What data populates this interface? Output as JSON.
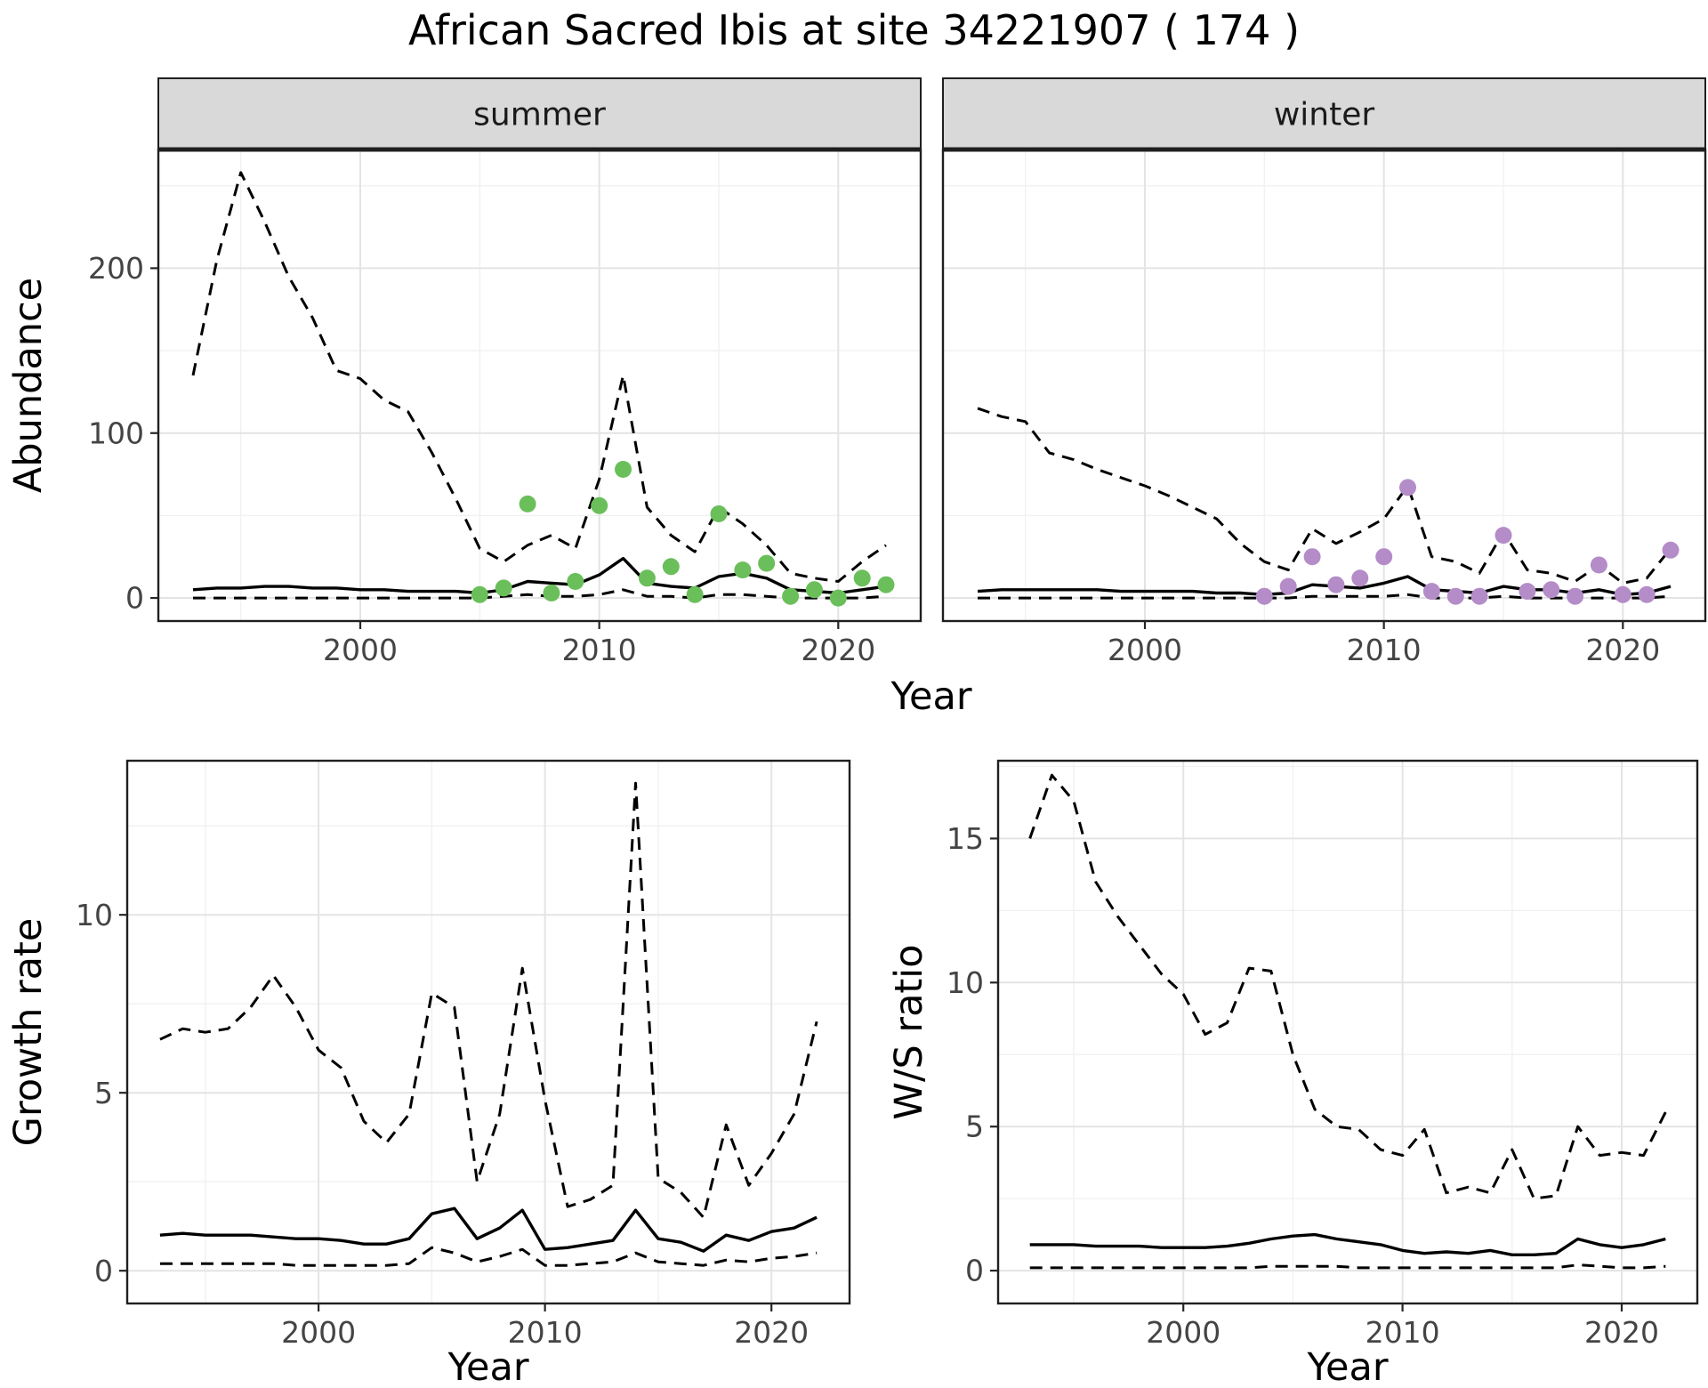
{
  "title": "African Sacred Ibis at site 34221907 ( 174 )",
  "facets": [
    "summer",
    "winter"
  ],
  "colors": {
    "summer_points": "#6abf5a",
    "winter_points": "#b48cc8",
    "line": "#000000",
    "strip_bg": "#d9d9d9",
    "panel_border": "#1f1f1f",
    "grid_major": "#e4e4e4",
    "grid_minor": "#f1f1f1",
    "tick": "#262626",
    "tick_text": "#444444",
    "text": "#000000",
    "background": "#ffffff"
  },
  "chart_data": [
    {
      "id": "abundance-summer",
      "type": "line",
      "facet": "summer",
      "title": "",
      "xlabel": "Year",
      "ylabel": "Abundance",
      "xlim": [
        1991.55,
        2023.45
      ],
      "ylim": [
        -14,
        272
      ],
      "xticks": [
        2000,
        2010,
        2020
      ],
      "yticks": [
        0,
        100,
        200
      ],
      "xticks_minor": [
        1995,
        2005,
        2015
      ],
      "yticks_minor": [
        50,
        150,
        250
      ],
      "grid": true,
      "legend": "none",
      "x": [
        1993,
        1994,
        1995,
        1996,
        1997,
        1998,
        1999,
        2000,
        2001,
        2002,
        2003,
        2004,
        2005,
        2006,
        2007,
        2008,
        2009,
        2010,
        2011,
        2012,
        2013,
        2014,
        2015,
        2016,
        2017,
        2018,
        2019,
        2020,
        2021,
        2022
      ],
      "series": [
        {
          "name": "upper-ci",
          "style": "dashed",
          "color": "#000000",
          "values": [
            135,
            205,
            258,
            228,
            195,
            170,
            138,
            133,
            120,
            113,
            88,
            60,
            30,
            22,
            32,
            38,
            30,
            72,
            135,
            55,
            38,
            28,
            55,
            45,
            32,
            15,
            12,
            10,
            22,
            32
          ]
        },
        {
          "name": "median",
          "style": "solid",
          "color": "#000000",
          "values": [
            5,
            6,
            6,
            7,
            7,
            6,
            6,
            5,
            5,
            4,
            4,
            4,
            3,
            5,
            10,
            9,
            8,
            14,
            24,
            9,
            7,
            6,
            13,
            15,
            12,
            5,
            4,
            3,
            5,
            7
          ]
        },
        {
          "name": "lower-ci",
          "style": "dashed",
          "color": "#000000",
          "values": [
            0,
            0,
            0,
            0,
            0,
            0,
            0,
            0,
            0,
            0,
            0,
            0,
            0,
            1,
            2,
            1,
            1,
            2,
            5,
            1,
            1,
            0,
            2,
            2,
            1,
            0,
            0,
            0,
            0,
            1
          ]
        },
        {
          "name": "observed-counts",
          "style": "points",
          "color": "#6abf5a",
          "x": [
            2005,
            2006,
            2007,
            2008,
            2009,
            2010,
            2011,
            2012,
            2013,
            2014,
            2015,
            2016,
            2017,
            2018,
            2019,
            2020,
            2021,
            2022
          ],
          "values": [
            2,
            6,
            57,
            3,
            10,
            56,
            78,
            12,
            19,
            2,
            51,
            17,
            21,
            1,
            5,
            0,
            12,
            8
          ]
        }
      ]
    },
    {
      "id": "abundance-winter",
      "type": "line",
      "facet": "winter",
      "title": "",
      "xlabel": "Year",
      "ylabel": "Abundance",
      "xlim": [
        1991.55,
        2023.45
      ],
      "ylim": [
        -14,
        272
      ],
      "xticks": [
        2000,
        2010,
        2020
      ],
      "yticks": [
        0,
        100,
        200
      ],
      "xticks_minor": [
        1995,
        2005,
        2015
      ],
      "yticks_minor": [
        50,
        150,
        250
      ],
      "grid": true,
      "legend": "none",
      "x": [
        1993,
        1994,
        1995,
        1996,
        1997,
        1998,
        1999,
        2000,
        2001,
        2002,
        2003,
        2004,
        2005,
        2006,
        2007,
        2008,
        2009,
        2010,
        2011,
        2012,
        2013,
        2014,
        2015,
        2016,
        2017,
        2018,
        2019,
        2020,
        2021,
        2022
      ],
      "series": [
        {
          "name": "upper-ci",
          "style": "dashed",
          "color": "#000000",
          "values": [
            115,
            110,
            107,
            88,
            84,
            78,
            73,
            68,
            62,
            55,
            48,
            33,
            22,
            17,
            42,
            33,
            40,
            48,
            68,
            25,
            22,
            15,
            40,
            17,
            15,
            10,
            20,
            9,
            12,
            30
          ]
        },
        {
          "name": "median",
          "style": "solid",
          "color": "#000000",
          "values": [
            4,
            5,
            5,
            5,
            5,
            5,
            4,
            4,
            4,
            4,
            3,
            3,
            2,
            3,
            8,
            7,
            6,
            9,
            13,
            5,
            4,
            3,
            7,
            5,
            5,
            3,
            5,
            2,
            3,
            7
          ]
        },
        {
          "name": "lower-ci",
          "style": "dashed",
          "color": "#000000",
          "values": [
            0,
            0,
            0,
            0,
            0,
            0,
            0,
            0,
            0,
            0,
            0,
            0,
            0,
            0,
            1,
            1,
            1,
            1,
            2,
            0,
            0,
            0,
            1,
            0,
            0,
            0,
            0,
            0,
            0,
            1
          ]
        },
        {
          "name": "observed-counts",
          "style": "points",
          "color": "#b48cc8",
          "x": [
            2005,
            2006,
            2007,
            2008,
            2009,
            2010,
            2011,
            2012,
            2013,
            2014,
            2015,
            2016,
            2017,
            2018,
            2019,
            2020,
            2021,
            2022
          ],
          "values": [
            1,
            7,
            25,
            8,
            12,
            25,
            67,
            4,
            1,
            1,
            38,
            4,
            5,
            1,
            20,
            2,
            2,
            29
          ]
        }
      ]
    },
    {
      "id": "growth-rate",
      "type": "line",
      "facet": "",
      "title": "",
      "xlabel": "Year",
      "ylabel": "Growth rate",
      "xlim": [
        1991.55,
        2023.45
      ],
      "ylim": [
        -0.92,
        14.33
      ],
      "xticks": [
        2000,
        2010,
        2020
      ],
      "yticks": [
        0,
        5,
        10
      ],
      "xticks_minor": [
        1995,
        2005,
        2015
      ],
      "yticks_minor": [
        2.5,
        7.5,
        12.5
      ],
      "grid": true,
      "legend": "none",
      "x": [
        1993,
        1994,
        1995,
        1996,
        1997,
        1998,
        1999,
        2000,
        2001,
        2002,
        2003,
        2004,
        2005,
        2006,
        2007,
        2008,
        2009,
        2010,
        2011,
        2012,
        2013,
        2014,
        2015,
        2016,
        2017,
        2018,
        2019,
        2020,
        2021,
        2022
      ],
      "series": [
        {
          "name": "upper-ci",
          "style": "dashed",
          "color": "#000000",
          "values": [
            6.5,
            6.8,
            6.7,
            6.8,
            7.4,
            8.3,
            7.4,
            6.2,
            5.7,
            4.2,
            3.6,
            4.4,
            7.8,
            7.4,
            2.5,
            4.4,
            8.5,
            4.8,
            1.8,
            2.0,
            2.4,
            13.7,
            2.6,
            2.2,
            1.5,
            4.1,
            2.4,
            3.3,
            4.4,
            7.0
          ]
        },
        {
          "name": "median",
          "style": "solid",
          "color": "#000000",
          "values": [
            1.0,
            1.05,
            1.0,
            1.0,
            1.0,
            0.95,
            0.9,
            0.9,
            0.85,
            0.75,
            0.75,
            0.9,
            1.6,
            1.75,
            0.9,
            1.2,
            1.7,
            0.6,
            0.65,
            0.75,
            0.85,
            1.7,
            0.9,
            0.8,
            0.55,
            1.0,
            0.85,
            1.1,
            1.2,
            1.5
          ]
        },
        {
          "name": "lower-ci",
          "style": "dashed",
          "color": "#000000",
          "values": [
            0.2,
            0.2,
            0.2,
            0.2,
            0.2,
            0.2,
            0.15,
            0.15,
            0.15,
            0.15,
            0.15,
            0.2,
            0.65,
            0.5,
            0.25,
            0.4,
            0.6,
            0.15,
            0.15,
            0.2,
            0.25,
            0.5,
            0.25,
            0.2,
            0.15,
            0.3,
            0.25,
            0.35,
            0.4,
            0.5
          ]
        }
      ]
    },
    {
      "id": "ws-ratio",
      "type": "line",
      "facet": "",
      "title": "",
      "xlabel": "Year",
      "ylabel": "W/S ratio",
      "xlim": [
        1991.55,
        2023.45
      ],
      "ylim": [
        -1.14,
        17.7
      ],
      "xticks": [
        2000,
        2010,
        2020
      ],
      "yticks": [
        0,
        5,
        10,
        15
      ],
      "xticks_minor": [
        1995,
        2005,
        2015
      ],
      "yticks_minor": [
        2.5,
        7.5,
        12.5,
        17.5
      ],
      "grid": true,
      "legend": "none",
      "x": [
        1993,
        1994,
        1995,
        1996,
        1997,
        1998,
        1999,
        2000,
        2001,
        2002,
        2003,
        2004,
        2005,
        2006,
        2007,
        2008,
        2009,
        2010,
        2011,
        2012,
        2013,
        2014,
        2015,
        2016,
        2017,
        2018,
        2019,
        2020,
        2021,
        2022
      ],
      "series": [
        {
          "name": "upper-ci",
          "style": "dashed",
          "color": "#000000",
          "values": [
            15.0,
            17.2,
            16.3,
            13.5,
            12.3,
            11.3,
            10.3,
            9.6,
            8.2,
            8.6,
            10.5,
            10.4,
            7.5,
            5.6,
            5.0,
            4.9,
            4.2,
            4.0,
            4.9,
            2.7,
            2.9,
            2.7,
            4.2,
            2.5,
            2.6,
            5.0,
            4.0,
            4.1,
            4.0,
            5.5
          ]
        },
        {
          "name": "median",
          "style": "solid",
          "color": "#000000",
          "values": [
            0.9,
            0.9,
            0.9,
            0.85,
            0.85,
            0.85,
            0.8,
            0.8,
            0.8,
            0.85,
            0.95,
            1.1,
            1.2,
            1.25,
            1.1,
            1.0,
            0.9,
            0.7,
            0.6,
            0.65,
            0.6,
            0.7,
            0.55,
            0.55,
            0.6,
            1.1,
            0.9,
            0.8,
            0.9,
            1.1
          ]
        },
        {
          "name": "lower-ci",
          "style": "dashed",
          "color": "#000000",
          "values": [
            0.1,
            0.1,
            0.1,
            0.1,
            0.1,
            0.1,
            0.1,
            0.1,
            0.1,
            0.1,
            0.1,
            0.15,
            0.15,
            0.15,
            0.15,
            0.1,
            0.1,
            0.1,
            0.1,
            0.1,
            0.1,
            0.1,
            0.1,
            0.1,
            0.1,
            0.2,
            0.15,
            0.1,
            0.1,
            0.15
          ]
        }
      ]
    }
  ]
}
